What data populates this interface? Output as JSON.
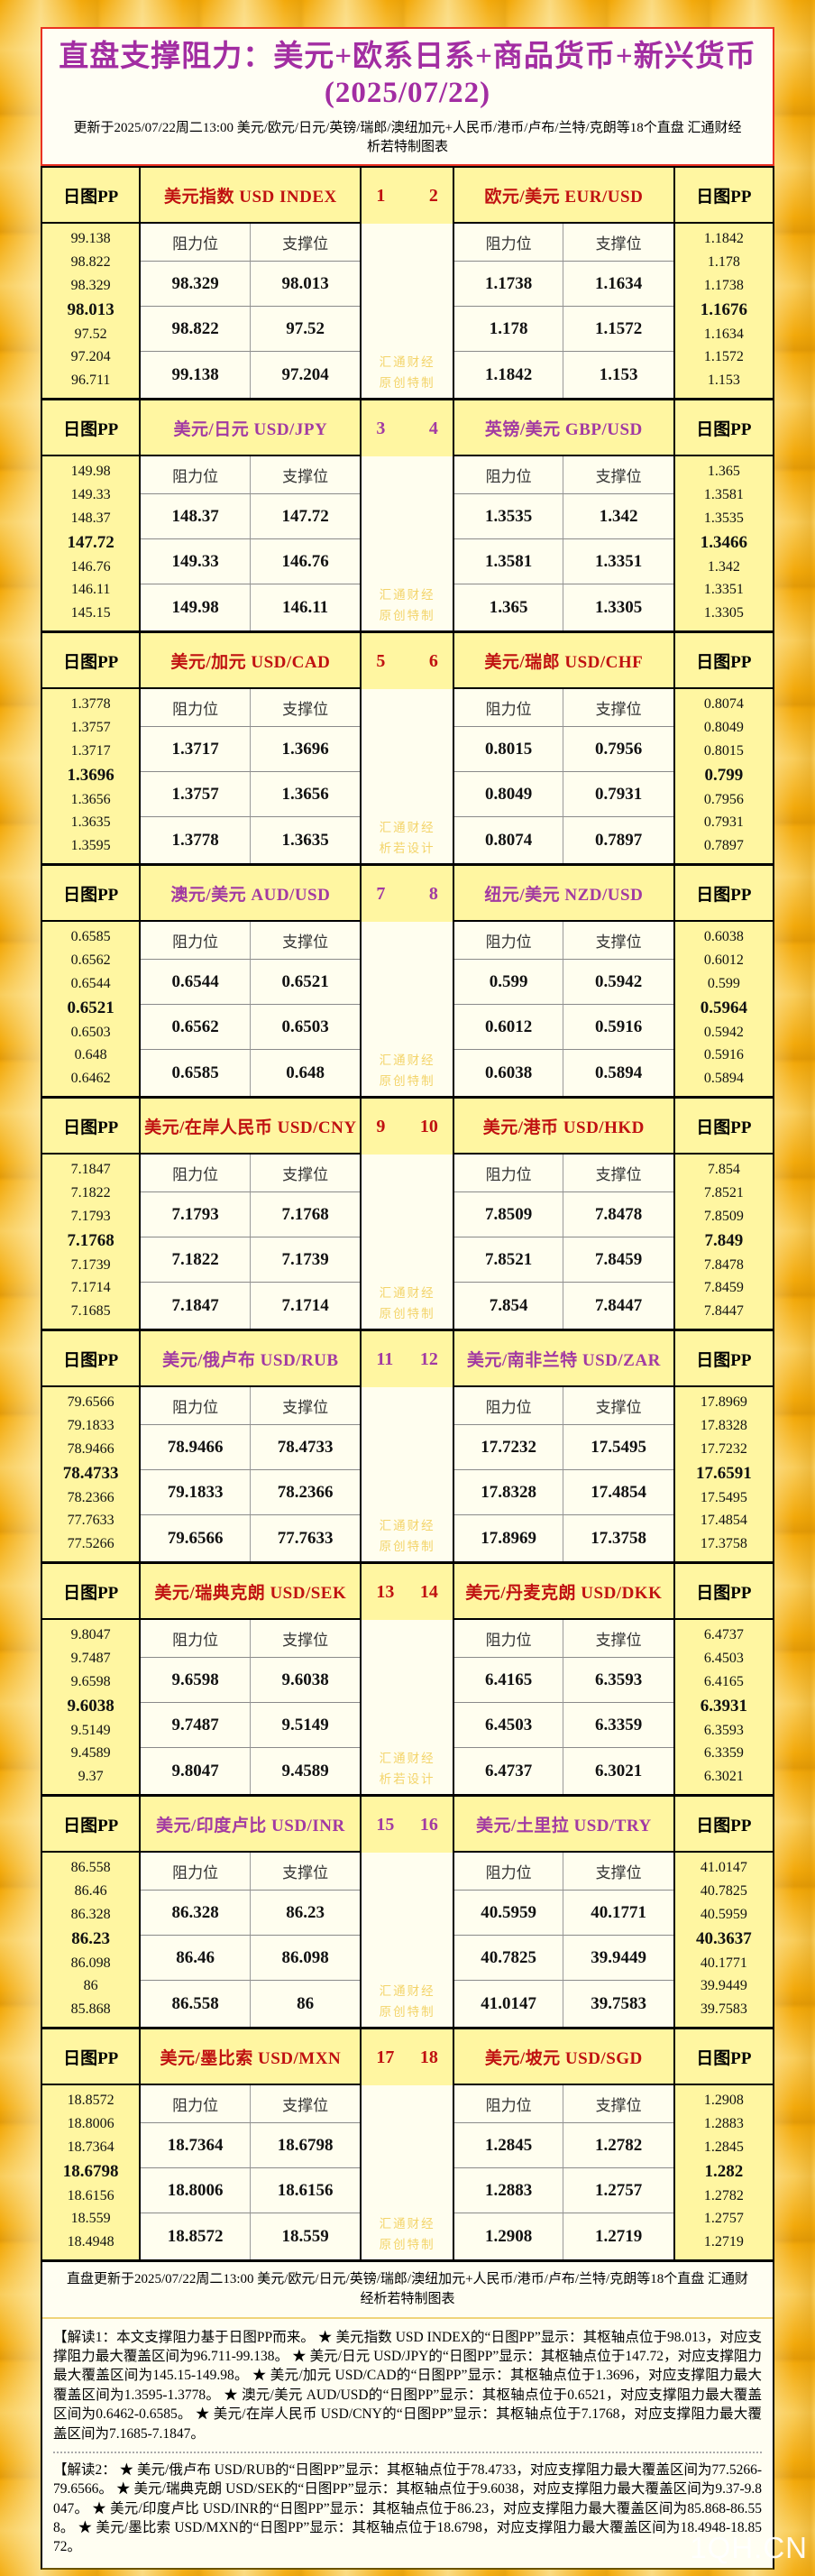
{
  "title": "直盘支撑阻力：美元+欧系日系+商品货币+新兴货币(2025/07/22)",
  "subtitle": "更新于2025/07/22周二13:00 美元/欧元/日元/英镑/瑞郎/澳纽加元+人民币/港币/卢布/兰特/克朗等18个直盘 汇通财经析若特制图表",
  "labels": {
    "daily_pp": "日图PP",
    "resistance": "阻力位",
    "support": "支撑位"
  },
  "colors": {
    "red": "#c01111",
    "purple": "#a23aa2",
    "title_purple": "#a22da2",
    "border_red": "#e93223",
    "gold_frame": "#f3a90a",
    "cell_yellow": "#fff6a1",
    "cell_cream": "#fffeef",
    "watermark": "#f3d46a"
  },
  "site_mark": "1QH.CN",
  "blocks": [
    {
      "num_left": "1",
      "num_right": "2",
      "accent": "red",
      "watermark_line1": "汇通财经",
      "watermark_line2": "原创特制",
      "left": {
        "title": "美元指数 USD INDEX",
        "pp": [
          "99.138",
          "98.822",
          "98.329",
          "98.013",
          "97.52",
          "97.204",
          "96.711"
        ],
        "rows": [
          [
            "98.329",
            "98.013"
          ],
          [
            "98.822",
            "97.52"
          ],
          [
            "99.138",
            "97.204"
          ]
        ]
      },
      "right": {
        "title": "欧元/美元 EUR/USD",
        "pp": [
          "1.1842",
          "1.178",
          "1.1738",
          "1.1676",
          "1.1634",
          "1.1572",
          "1.153"
        ],
        "rows": [
          [
            "1.1738",
            "1.1634"
          ],
          [
            "1.178",
            "1.1572"
          ],
          [
            "1.1842",
            "1.153"
          ]
        ]
      }
    },
    {
      "num_left": "3",
      "num_right": "4",
      "accent": "purple",
      "watermark_line1": "汇通财经",
      "watermark_line2": "原创特制",
      "left": {
        "title": "美元/日元 USD/JPY",
        "pp": [
          "149.98",
          "149.33",
          "148.37",
          "147.72",
          "146.76",
          "146.11",
          "145.15"
        ],
        "rows": [
          [
            "148.37",
            "147.72"
          ],
          [
            "149.33",
            "146.76"
          ],
          [
            "149.98",
            "146.11"
          ]
        ]
      },
      "right": {
        "title": "英镑/美元 GBP/USD",
        "pp": [
          "1.365",
          "1.3581",
          "1.3535",
          "1.3466",
          "1.342",
          "1.3351",
          "1.3305"
        ],
        "rows": [
          [
            "1.3535",
            "1.342"
          ],
          [
            "1.3581",
            "1.3351"
          ],
          [
            "1.365",
            "1.3305"
          ]
        ]
      }
    },
    {
      "num_left": "5",
      "num_right": "6",
      "accent": "red",
      "watermark_line1": "汇通财经",
      "watermark_line2": "析若设计",
      "left": {
        "title": "美元/加元 USD/CAD",
        "pp": [
          "1.3778",
          "1.3757",
          "1.3717",
          "1.3696",
          "1.3656",
          "1.3635",
          "1.3595"
        ],
        "rows": [
          [
            "1.3717",
            "1.3696"
          ],
          [
            "1.3757",
            "1.3656"
          ],
          [
            "1.3778",
            "1.3635"
          ]
        ]
      },
      "right": {
        "title": "美元/瑞郎 USD/CHF",
        "pp": [
          "0.8074",
          "0.8049",
          "0.8015",
          "0.799",
          "0.7956",
          "0.7931",
          "0.7897"
        ],
        "rows": [
          [
            "0.8015",
            "0.7956"
          ],
          [
            "0.8049",
            "0.7931"
          ],
          [
            "0.8074",
            "0.7897"
          ]
        ]
      }
    },
    {
      "num_left": "7",
      "num_right": "8",
      "accent": "purple",
      "watermark_line1": "汇通财经",
      "watermark_line2": "原创特制",
      "left": {
        "title": "澳元/美元 AUD/USD",
        "pp": [
          "0.6585",
          "0.6562",
          "0.6544",
          "0.6521",
          "0.6503",
          "0.648",
          "0.6462"
        ],
        "rows": [
          [
            "0.6544",
            "0.6521"
          ],
          [
            "0.6562",
            "0.6503"
          ],
          [
            "0.6585",
            "0.648"
          ]
        ]
      },
      "right": {
        "title": "纽元/美元 NZD/USD",
        "pp": [
          "0.6038",
          "0.6012",
          "0.599",
          "0.5964",
          "0.5942",
          "0.5916",
          "0.5894"
        ],
        "rows": [
          [
            "0.599",
            "0.5942"
          ],
          [
            "0.6012",
            "0.5916"
          ],
          [
            "0.6038",
            "0.5894"
          ]
        ]
      }
    },
    {
      "num_left": "9",
      "num_right": "10",
      "accent": "red",
      "watermark_line1": "汇通财经",
      "watermark_line2": "原创特制",
      "left": {
        "title": "美元/在岸人民币 USD/CNY",
        "pp": [
          "7.1847",
          "7.1822",
          "7.1793",
          "7.1768",
          "7.1739",
          "7.1714",
          "7.1685"
        ],
        "rows": [
          [
            "7.1793",
            "7.1768"
          ],
          [
            "7.1822",
            "7.1739"
          ],
          [
            "7.1847",
            "7.1714"
          ]
        ]
      },
      "right": {
        "title": "美元/港币 USD/HKD",
        "pp": [
          "7.854",
          "7.8521",
          "7.8509",
          "7.849",
          "7.8478",
          "7.8459",
          "7.8447"
        ],
        "rows": [
          [
            "7.8509",
            "7.8478"
          ],
          [
            "7.8521",
            "7.8459"
          ],
          [
            "7.854",
            "7.8447"
          ]
        ]
      }
    },
    {
      "num_left": "11",
      "num_right": "12",
      "accent": "purple",
      "watermark_line1": "汇通财经",
      "watermark_line2": "原创特制",
      "left": {
        "title": "美元/俄卢布 USD/RUB",
        "pp": [
          "79.6566",
          "79.1833",
          "78.9466",
          "78.4733",
          "78.2366",
          "77.7633",
          "77.5266"
        ],
        "rows": [
          [
            "78.9466",
            "78.4733"
          ],
          [
            "79.1833",
            "78.2366"
          ],
          [
            "79.6566",
            "77.7633"
          ]
        ]
      },
      "right": {
        "title": "美元/南非兰特 USD/ZAR",
        "pp": [
          "17.8969",
          "17.8328",
          "17.7232",
          "17.6591",
          "17.5495",
          "17.4854",
          "17.3758"
        ],
        "rows": [
          [
            "17.7232",
            "17.5495"
          ],
          [
            "17.8328",
            "17.4854"
          ],
          [
            "17.8969",
            "17.3758"
          ]
        ]
      }
    },
    {
      "num_left": "13",
      "num_right": "14",
      "accent": "red",
      "watermark_line1": "汇通财经",
      "watermark_line2": "析若设计",
      "left": {
        "title": "美元/瑞典克朗 USD/SEK",
        "pp": [
          "9.8047",
          "9.7487",
          "9.6598",
          "9.6038",
          "9.5149",
          "9.4589",
          "9.37"
        ],
        "rows": [
          [
            "9.6598",
            "9.6038"
          ],
          [
            "9.7487",
            "9.5149"
          ],
          [
            "9.8047",
            "9.4589"
          ]
        ]
      },
      "right": {
        "title": "美元/丹麦克朗 USD/DKK",
        "pp": [
          "6.4737",
          "6.4503",
          "6.4165",
          "6.3931",
          "6.3593",
          "6.3359",
          "6.3021"
        ],
        "rows": [
          [
            "6.4165",
            "6.3593"
          ],
          [
            "6.4503",
            "6.3359"
          ],
          [
            "6.4737",
            "6.3021"
          ]
        ]
      }
    },
    {
      "num_left": "15",
      "num_right": "16",
      "accent": "purple",
      "watermark_line1": "汇通财经",
      "watermark_line2": "原创特制",
      "left": {
        "title": "美元/印度卢比 USD/INR",
        "pp": [
          "86.558",
          "86.46",
          "86.328",
          "86.23",
          "86.098",
          "86",
          "85.868"
        ],
        "rows": [
          [
            "86.328",
            "86.23"
          ],
          [
            "86.46",
            "86.098"
          ],
          [
            "86.558",
            "86"
          ]
        ]
      },
      "right": {
        "title": "美元/土里拉 USD/TRY",
        "pp": [
          "41.0147",
          "40.7825",
          "40.5959",
          "40.3637",
          "40.1771",
          "39.9449",
          "39.7583"
        ],
        "rows": [
          [
            "40.5959",
            "40.1771"
          ],
          [
            "40.7825",
            "39.9449"
          ],
          [
            "41.0147",
            "39.7583"
          ]
        ]
      }
    },
    {
      "num_left": "17",
      "num_right": "18",
      "accent": "red",
      "watermark_line1": "汇通财经",
      "watermark_line2": "原创特制",
      "left": {
        "title": "美元/墨比索 USD/MXN",
        "pp": [
          "18.8572",
          "18.8006",
          "18.7364",
          "18.6798",
          "18.6156",
          "18.559",
          "18.4948"
        ],
        "rows": [
          [
            "18.7364",
            "18.6798"
          ],
          [
            "18.8006",
            "18.6156"
          ],
          [
            "18.8572",
            "18.559"
          ]
        ]
      },
      "right": {
        "title": "美元/坡元 USD/SGD",
        "pp": [
          "1.2908",
          "1.2883",
          "1.2845",
          "1.282",
          "1.2782",
          "1.2757",
          "1.2719"
        ],
        "rows": [
          [
            "1.2845",
            "1.2782"
          ],
          [
            "1.2883",
            "1.2757"
          ],
          [
            "1.2908",
            "1.2719"
          ]
        ]
      }
    }
  ],
  "footer": {
    "update_line": "直盘更新于2025/07/22周二13:00 美元/欧元/日元/英镑/瑞郎/澳纽加元+人民币/港币/卢布/兰特/克朗等18个直盘 汇通财经析若特制图表",
    "note1": "【解读1：本文支撑阻力基于日图PP而来。 ★ 美元指数 USD INDEX的“日图PP”显示：其枢轴点位于98.013，对应支撑阻力最大覆盖区间为96.711-99.138。 ★ 美元/日元 USD/JPY的“日图PP”显示：其枢轴点位于147.72，对应支撑阻力最大覆盖区间为145.15-149.98。 ★ 美元/加元 USD/CAD的“日图PP”显示：其枢轴点位于1.3696，对应支撑阻力最大覆盖区间为1.3595-1.3778。 ★ 澳元/美元 AUD/USD的“日图PP”显示：其枢轴点位于0.6521，对应支撑阻力最大覆盖区间为0.6462-0.6585。 ★ 美元/在岸人民币 USD/CNY的“日图PP”显示：其枢轴点位于7.1768，对应支撑阻力最大覆盖区间为7.1685-7.1847。",
    "note2": "【解读2： ★ 美元/俄卢布 USD/RUB的“日图PP”显示：其枢轴点位于78.4733，对应支撑阻力最大覆盖区间为77.5266-79.6566。 ★ 美元/瑞典克朗 USD/SEK的“日图PP”显示：其枢轴点位于9.6038，对应支撑阻力最大覆盖区间为9.37-9.8047。 ★ 美元/印度卢比 USD/INR的“日图PP”显示：其枢轴点位于86.23，对应支撑阻力最大覆盖区间为85.868-86.558。 ★ 美元/墨比索 USD/MXN的“日图PP”显示：其枢轴点位于18.6798，对应支撑阻力最大覆盖区间为18.4948-18.8572。"
  },
  "chart_data": {
    "type": "table",
    "title": "直盘支撑阻力：美元+欧系日系+商品货币+新兴货币(2025/07/22)",
    "columns": [
      "日图PP",
      "阻力位",
      "支撑位"
    ],
    "pairs": [
      {
        "n": 1,
        "code": "USD INDEX",
        "pivot": 98.013,
        "levels": [
          99.138,
          98.822,
          98.329,
          98.013,
          97.52,
          97.204,
          96.711
        ]
      },
      {
        "n": 2,
        "code": "EUR/USD",
        "pivot": 1.1676,
        "levels": [
          1.1842,
          1.178,
          1.1738,
          1.1676,
          1.1634,
          1.1572,
          1.153
        ]
      },
      {
        "n": 3,
        "code": "USD/JPY",
        "pivot": 147.72,
        "levels": [
          149.98,
          149.33,
          148.37,
          147.72,
          146.76,
          146.11,
          145.15
        ]
      },
      {
        "n": 4,
        "code": "GBP/USD",
        "pivot": 1.3466,
        "levels": [
          1.365,
          1.3581,
          1.3535,
          1.3466,
          1.342,
          1.3351,
          1.3305
        ]
      },
      {
        "n": 5,
        "code": "USD/CAD",
        "pivot": 1.3696,
        "levels": [
          1.3778,
          1.3757,
          1.3717,
          1.3696,
          1.3656,
          1.3635,
          1.3595
        ]
      },
      {
        "n": 6,
        "code": "USD/CHF",
        "pivot": 0.799,
        "levels": [
          0.8074,
          0.8049,
          0.8015,
          0.799,
          0.7956,
          0.7931,
          0.7897
        ]
      },
      {
        "n": 7,
        "code": "AUD/USD",
        "pivot": 0.6521,
        "levels": [
          0.6585,
          0.6562,
          0.6544,
          0.6521,
          0.6503,
          0.648,
          0.6462
        ]
      },
      {
        "n": 8,
        "code": "NZD/USD",
        "pivot": 0.5964,
        "levels": [
          0.6038,
          0.6012,
          0.599,
          0.5964,
          0.5942,
          0.5916,
          0.5894
        ]
      },
      {
        "n": 9,
        "code": "USD/CNY",
        "pivot": 7.1768,
        "levels": [
          7.1847,
          7.1822,
          7.1793,
          7.1768,
          7.1739,
          7.1714,
          7.1685
        ]
      },
      {
        "n": 10,
        "code": "USD/HKD",
        "pivot": 7.849,
        "levels": [
          7.854,
          7.8521,
          7.8509,
          7.849,
          7.8478,
          7.8459,
          7.8447
        ]
      },
      {
        "n": 11,
        "code": "USD/RUB",
        "pivot": 78.4733,
        "levels": [
          79.6566,
          79.1833,
          78.9466,
          78.4733,
          78.2366,
          77.7633,
          77.5266
        ]
      },
      {
        "n": 12,
        "code": "USD/ZAR",
        "pivot": 17.6591,
        "levels": [
          17.8969,
          17.8328,
          17.7232,
          17.6591,
          17.5495,
          17.4854,
          17.3758
        ]
      },
      {
        "n": 13,
        "code": "USD/SEK",
        "pivot": 9.6038,
        "levels": [
          9.8047,
          9.7487,
          9.6598,
          9.6038,
          9.5149,
          9.4589,
          9.37
        ]
      },
      {
        "n": 14,
        "code": "USD/DKK",
        "pivot": 6.3931,
        "levels": [
          6.4737,
          6.4503,
          6.4165,
          6.3931,
          6.3593,
          6.3359,
          6.3021
        ]
      },
      {
        "n": 15,
        "code": "USD/INR",
        "pivot": 86.23,
        "levels": [
          86.558,
          86.46,
          86.328,
          86.23,
          86.098,
          86,
          85.868
        ]
      },
      {
        "n": 16,
        "code": "USD/TRY",
        "pivot": 40.3637,
        "levels": [
          41.0147,
          40.7825,
          40.5959,
          40.3637,
          40.1771,
          39.9449,
          39.7583
        ]
      },
      {
        "n": 17,
        "code": "USD/MXN",
        "pivot": 18.6798,
        "levels": [
          18.8572,
          18.8006,
          18.7364,
          18.6798,
          18.6156,
          18.559,
          18.4948
        ]
      },
      {
        "n": 18,
        "code": "USD/SGD",
        "pivot": 1.282,
        "levels": [
          1.2908,
          1.2883,
          1.2845,
          1.282,
          1.2782,
          1.2757,
          1.2719
        ]
      }
    ]
  }
}
